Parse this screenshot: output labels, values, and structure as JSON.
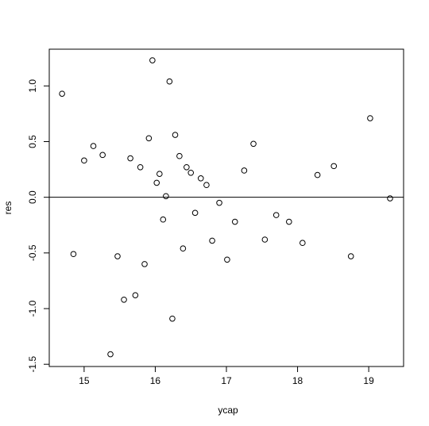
{
  "chart_data": {
    "type": "scatter",
    "x_label": "ycap",
    "y_label": "res",
    "x": [
      14.69,
      14.85,
      15.0,
      15.13,
      15.26,
      15.37,
      15.47,
      15.56,
      15.65,
      15.72,
      15.79,
      15.85,
      15.91,
      15.96,
      16.02,
      16.06,
      16.11,
      16.15,
      16.2,
      16.24,
      16.28,
      16.34,
      16.39,
      16.44,
      16.5,
      16.56,
      16.64,
      16.72,
      16.8,
      16.9,
      17.01,
      17.12,
      17.25,
      17.38,
      17.54,
      17.7,
      17.88,
      18.07,
      18.28,
      18.51,
      18.75,
      19.02,
      19.3
    ],
    "values": [
      0.93,
      -0.51,
      0.33,
      0.46,
      0.38,
      -1.41,
      -0.53,
      -0.92,
      0.35,
      -0.88,
      0.27,
      -0.6,
      0.53,
      1.23,
      0.13,
      0.21,
      -0.2,
      0.01,
      1.04,
      -1.09,
      0.56,
      0.37,
      -0.46,
      0.27,
      0.22,
      -0.14,
      0.17,
      0.11,
      -0.39,
      -0.05,
      -0.56,
      -0.22,
      0.24,
      0.48,
      -0.38,
      -0.16,
      -0.22,
      -0.41,
      0.2,
      0.28,
      -0.53,
      0.71,
      -0.01
    ],
    "color": "#000000",
    "hline": 0,
    "xlim": [
      14.51,
      19.49
    ],
    "ylim": [
      -1.52,
      1.33
    ],
    "xticks": [
      15,
      16,
      17,
      18,
      19
    ],
    "yticks": [
      {
        "value": -1.5,
        "label": "-1.5"
      },
      {
        "value": -1,
        "label": "-1.0"
      },
      {
        "value": -0.5,
        "label": "-0.5"
      },
      {
        "value": 0,
        "label": "0.0"
      },
      {
        "value": 0.5,
        "label": "0.5"
      },
      {
        "value": 1,
        "label": "1.0"
      }
    ]
  }
}
